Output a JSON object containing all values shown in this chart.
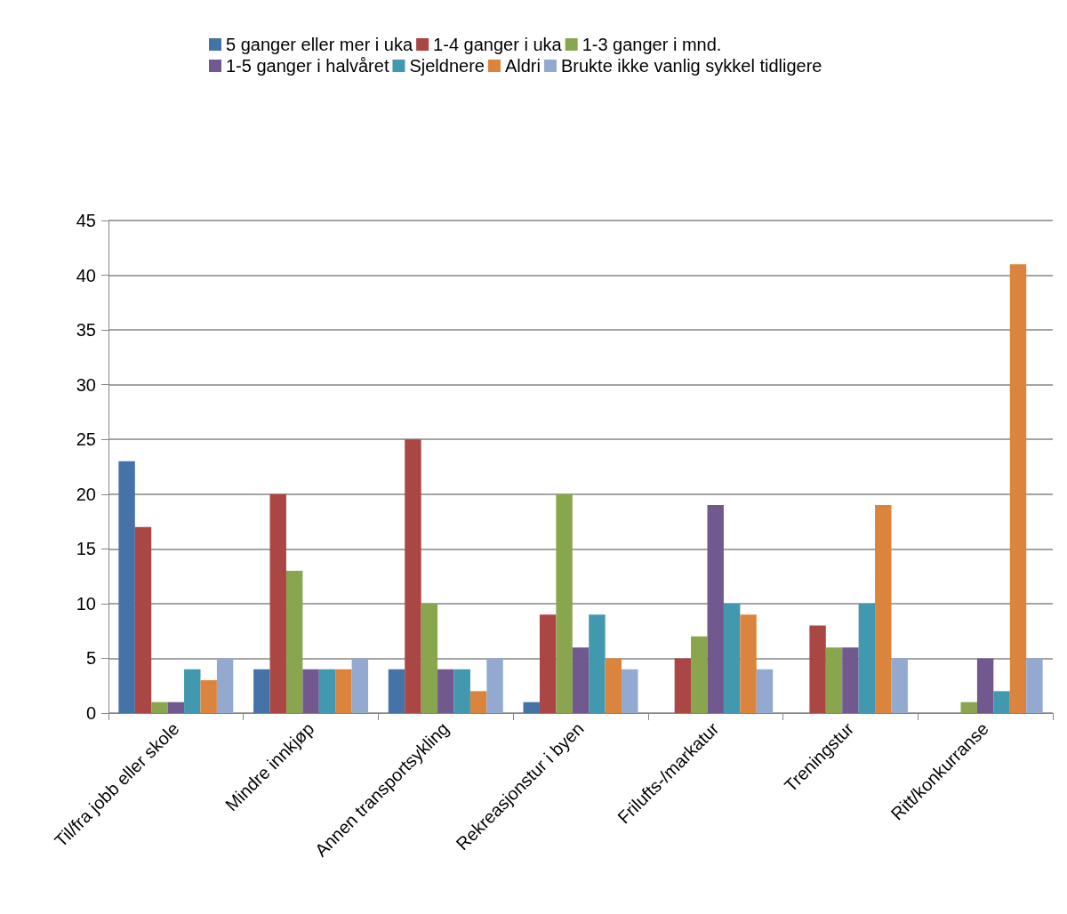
{
  "chart_data": {
    "type": "bar",
    "categories": [
      "Til/fra jobb eller skole",
      "Mindre innkjøp",
      "Annen transportsykling",
      "Rekreasjonstur i byen",
      "Frilufts-/markatur",
      "Treningstur",
      "Ritt/konkurranse"
    ],
    "series": [
      {
        "name": "5 ganger eller mer i uka",
        "color": "#4572a7",
        "values": [
          23,
          4,
          4,
          1,
          0,
          0,
          0
        ]
      },
      {
        "name": "1-4 ganger i uka",
        "color": "#aa4643",
        "values": [
          17,
          20,
          25,
          9,
          5,
          8,
          0
        ]
      },
      {
        "name": "1-3 ganger i mnd.",
        "color": "#89a54e",
        "values": [
          1,
          13,
          10,
          20,
          7,
          6,
          1
        ]
      },
      {
        "name": "1-5 ganger i halvåret",
        "color": "#71588f",
        "values": [
          1,
          4,
          4,
          6,
          19,
          6,
          5
        ]
      },
      {
        "name": "Sjeldnere",
        "color": "#4198af",
        "values": [
          4,
          4,
          4,
          9,
          10,
          10,
          2
        ]
      },
      {
        "name": "Aldri",
        "color": "#db843d",
        "values": [
          3,
          4,
          2,
          5,
          9,
          19,
          41
        ]
      },
      {
        "name": "Brukte ikke vanlig sykkel tidligere",
        "color": "#93a9cf",
        "values": [
          5,
          5,
          5,
          4,
          4,
          5,
          5
        ]
      }
    ],
    "ylim": [
      0,
      45
    ],
    "yticks": [
      0,
      5,
      10,
      15,
      20,
      25,
      30,
      35,
      40,
      45
    ],
    "grid": "y",
    "legend": "top"
  }
}
